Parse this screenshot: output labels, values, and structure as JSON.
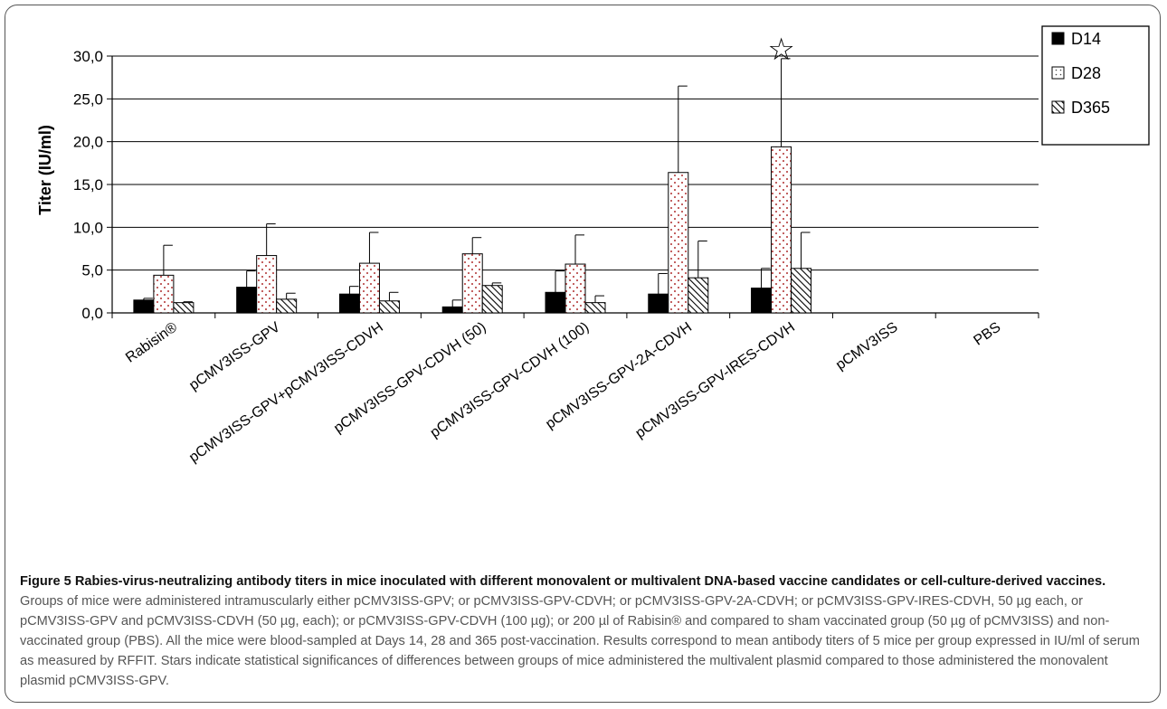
{
  "chart_data": {
    "type": "bar",
    "ylabel": "Titer (IU/ml)",
    "ylim": [
      0,
      30
    ],
    "yticks": [
      "0,0",
      "5,0",
      "10,0",
      "15,0",
      "20,0",
      "25,0",
      "30,0"
    ],
    "grid": true,
    "legend_position": "top-right",
    "categories": [
      "Rabisin®",
      "pCMV3ISS-GPV",
      "pCMV3ISS-GPV+pCMV3ISS-CDVH",
      "pCMV3ISS-GPV-CDVH (50)",
      "pCMV3ISS-GPV-CDVH (100)",
      "pCMV3ISS-GPV-2A-CDVH",
      "pCMV3ISS-GPV-IRES-CDVH",
      "pCMV3ISS",
      "PBS"
    ],
    "series": [
      {
        "name": "D14",
        "fill": "solid-black",
        "values": [
          1.5,
          3.0,
          2.2,
          0.7,
          2.4,
          2.2,
          2.9,
          0,
          0
        ],
        "errors": [
          0.2,
          1.9,
          0.9,
          0.8,
          2.5,
          2.4,
          2.3,
          0,
          0
        ]
      },
      {
        "name": "D28",
        "fill": "red-dots",
        "values": [
          4.4,
          6.7,
          5.8,
          6.9,
          5.7,
          16.4,
          19.4,
          0,
          0
        ],
        "errors": [
          3.5,
          3.7,
          3.6,
          1.9,
          3.4,
          10.1,
          10.3,
          0,
          0
        ]
      },
      {
        "name": "D365",
        "fill": "diagonal-hatch",
        "values": [
          1.2,
          1.6,
          1.4,
          3.2,
          1.2,
          4.1,
          5.2,
          0,
          0
        ],
        "errors": [
          0.1,
          0.7,
          1.0,
          0.3,
          0.8,
          4.3,
          4.2,
          0,
          0
        ]
      }
    ],
    "annotations": [
      {
        "category": "pCMV3ISS-GPV-IRES-CDVH",
        "symbol": "☆",
        "meaning": "star"
      }
    ]
  },
  "caption": {
    "label": "Figure 5",
    "title": "Rabies-virus-neutralizing antibody titers in mice inoculated with different monovalent or multivalent DNA-based vaccine candidates or cell-culture-derived vaccines.",
    "body": "Groups of mice were administered intramuscularly either pCMV3ISS-GPV; or pCMV3ISS-GPV-CDVH; or pCMV3ISS-GPV-2A-CDVH; or pCMV3ISS-GPV-IRES-CDVH, 50 µg each, or pCMV3ISS-GPV and pCMV3ISS-CDVH (50 µg, each); or pCMV3ISS-GPV-CDVH (100 µg); or 200 µl of Rabisin® and compared to sham vaccinated group (50 µg of pCMV3ISS) and non-vaccinated group (PBS). All the mice were blood-sampled at Days 14, 28 and 365 post-vaccination. Results correspond to mean antibody titers of 5 mice per group expressed in IU/ml of serum as measured by RFFIT. Stars indicate statistical significances of differences between groups of mice administered the multivalent plasmid compared to those administered the monovalent plasmid pCMV3ISS-GPV."
  }
}
